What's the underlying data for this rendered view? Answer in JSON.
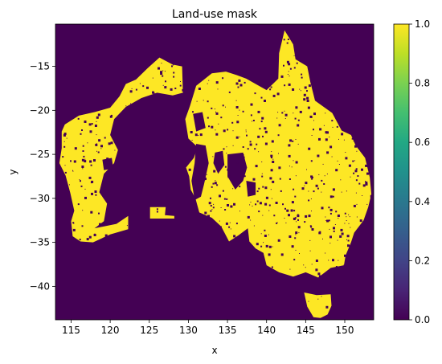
{
  "chart_data": {
    "type": "heatmap",
    "title": "Land-use mask",
    "xlabel": "x",
    "ylabel": "y",
    "xlim": [
      113,
      153.7
    ],
    "ylim": [
      -43.8,
      -10.2
    ],
    "xticks": [
      115,
      120,
      125,
      130,
      135,
      140,
      145,
      150
    ],
    "yticks": [
      -15,
      -20,
      -25,
      -30,
      -35,
      -40
    ],
    "xtick_labels": [
      "115",
      "120",
      "125",
      "130",
      "135",
      "140",
      "145",
      "150"
    ],
    "ytick_labels": [
      "−15",
      "−20",
      "−25",
      "−30",
      "−35",
      "−40"
    ],
    "grid": false,
    "colormap": "viridis",
    "clim": [
      0.0,
      1.0
    ],
    "colorbar_ticks": [
      0.0,
      0.2,
      0.4,
      0.6,
      0.8,
      1.0
    ],
    "colorbar_tick_labels": [
      "0.0",
      "0.2",
      "0.4",
      "0.6",
      "0.8",
      "1.0"
    ],
    "background_value": 0.0,
    "mask_value": 1.0,
    "background_color": "#440154",
    "mask_color": "#fde725",
    "mask_polygons": [
      {
        "name": "west-region",
        "points": [
          [
            114.2,
            -21.6
          ],
          [
            116.0,
            -20.6
          ],
          [
            118.0,
            -20.2
          ],
          [
            120.0,
            -19.7
          ],
          [
            121.2,
            -18.4
          ],
          [
            122.0,
            -17.0
          ],
          [
            123.3,
            -16.5
          ],
          [
            124.8,
            -15.2
          ],
          [
            126.3,
            -14.0
          ],
          [
            128.0,
            -14.8
          ],
          [
            129.2,
            -15.0
          ],
          [
            129.3,
            -18.0
          ],
          [
            128.0,
            -18.3
          ],
          [
            126.0,
            -18.0
          ],
          [
            124.0,
            -18.6
          ],
          [
            122.0,
            -19.6
          ],
          [
            120.5,
            -21.0
          ],
          [
            120.0,
            -22.8
          ],
          [
            121.0,
            -24.5
          ],
          [
            120.5,
            -26.0
          ],
          [
            119.2,
            -27.2
          ],
          [
            118.6,
            -29.3
          ],
          [
            119.6,
            -30.6
          ],
          [
            119.2,
            -32.6
          ],
          [
            118.0,
            -33.4
          ],
          [
            120.8,
            -32.9
          ],
          [
            122.3,
            -32.0
          ],
          [
            122.3,
            -33.5
          ],
          [
            120.0,
            -34.1
          ],
          [
            117.8,
            -35.0
          ],
          [
            116.2,
            -34.9
          ],
          [
            115.2,
            -34.3
          ],
          [
            115.0,
            -32.6
          ],
          [
            115.4,
            -31.4
          ],
          [
            114.9,
            -29.4
          ],
          [
            114.3,
            -27.4
          ],
          [
            113.5,
            -26.0
          ],
          [
            113.8,
            -24.3
          ],
          [
            113.8,
            -22.4
          ]
        ]
      },
      {
        "name": "east-region",
        "points": [
          [
            131.0,
            -17.2
          ],
          [
            133.0,
            -15.8
          ],
          [
            134.8,
            -15.6
          ],
          [
            136.2,
            -16.0
          ],
          [
            137.4,
            -16.4
          ],
          [
            138.6,
            -17.0
          ],
          [
            140.0,
            -17.7
          ],
          [
            141.5,
            -16.4
          ],
          [
            141.6,
            -13.5
          ],
          [
            142.3,
            -10.9
          ],
          [
            143.4,
            -12.5
          ],
          [
            143.7,
            -14.2
          ],
          [
            145.2,
            -15.0
          ],
          [
            145.6,
            -16.8
          ],
          [
            146.2,
            -18.9
          ],
          [
            148.4,
            -20.3
          ],
          [
            149.6,
            -22.3
          ],
          [
            150.8,
            -22.8
          ],
          [
            151.4,
            -24.0
          ],
          [
            152.6,
            -25.4
          ],
          [
            153.2,
            -27.6
          ],
          [
            153.4,
            -29.5
          ],
          [
            153.0,
            -31.0
          ],
          [
            152.4,
            -32.5
          ],
          [
            151.2,
            -33.9
          ],
          [
            150.8,
            -35.0
          ],
          [
            150.1,
            -36.5
          ],
          [
            149.9,
            -37.6
          ],
          [
            148.2,
            -37.9
          ],
          [
            146.6,
            -39.0
          ],
          [
            145.0,
            -38.4
          ],
          [
            143.4,
            -38.9
          ],
          [
            141.6,
            -38.4
          ],
          [
            140.0,
            -37.6
          ],
          [
            139.6,
            -36.2
          ],
          [
            138.6,
            -35.7
          ],
          [
            137.8,
            -34.9
          ],
          [
            137.6,
            -33.4
          ],
          [
            136.4,
            -34.2
          ],
          [
            135.2,
            -34.9
          ],
          [
            134.2,
            -33.2
          ],
          [
            133.0,
            -32.2
          ],
          [
            131.4,
            -31.6
          ],
          [
            130.9,
            -30.0
          ],
          [
            130.3,
            -29.0
          ],
          [
            130.1,
            -27.5
          ],
          [
            129.7,
            -26.5
          ],
          [
            130.7,
            -25.4
          ],
          [
            131.2,
            -24.2
          ],
          [
            130.0,
            -23.2
          ],
          [
            129.6,
            -21.0
          ],
          [
            130.2,
            -19.5
          ]
        ]
      },
      {
        "name": "tasmania",
        "points": [
          [
            144.8,
            -40.7
          ],
          [
            146.4,
            -41.0
          ],
          [
            148.2,
            -40.9
          ],
          [
            148.3,
            -42.2
          ],
          [
            147.8,
            -43.2
          ],
          [
            146.9,
            -43.6
          ],
          [
            146.0,
            -43.5
          ],
          [
            145.2,
            -42.3
          ]
        ]
      },
      {
        "name": "south-strip",
        "points": [
          [
            125.1,
            -31.0
          ],
          [
            127.1,
            -31.0
          ],
          [
            127.0,
            -31.9
          ],
          [
            128.2,
            -32.0
          ],
          [
            128.2,
            -32.3
          ],
          [
            125.1,
            -32.3
          ]
        ]
      }
    ],
    "hole_polygons": [
      {
        "name": "interior-gap-a",
        "points": [
          [
            131.0,
            -23.8
          ],
          [
            132.2,
            -24.0
          ],
          [
            132.6,
            -26.0
          ],
          [
            132.0,
            -28.4
          ],
          [
            131.6,
            -29.8
          ],
          [
            130.8,
            -30.2
          ],
          [
            130.4,
            -28.0
          ],
          [
            130.8,
            -26.0
          ]
        ]
      },
      {
        "name": "interior-gap-b",
        "points": [
          [
            133.4,
            -24.8
          ],
          [
            134.4,
            -24.6
          ],
          [
            134.6,
            -26.2
          ],
          [
            133.8,
            -27.2
          ],
          [
            133.2,
            -26.0
          ]
        ]
      },
      {
        "name": "interior-gap-c",
        "points": [
          [
            135.0,
            -25.0
          ],
          [
            137.0,
            -24.8
          ],
          [
            137.5,
            -26.5
          ],
          [
            137.0,
            -28.0
          ],
          [
            136.0,
            -29.0
          ],
          [
            135.0,
            -27.5
          ]
        ]
      },
      {
        "name": "lake-eyre",
        "points": [
          [
            137.4,
            -28.0
          ],
          [
            138.6,
            -28.2
          ],
          [
            138.6,
            -29.6
          ],
          [
            137.6,
            -29.8
          ]
        ]
      },
      {
        "name": "interior-gap-d",
        "points": [
          [
            130.6,
            -20.4
          ],
          [
            131.8,
            -20.2
          ],
          [
            132.2,
            -22.0
          ],
          [
            131.0,
            -22.4
          ]
        ]
      },
      {
        "name": "interior-gap-e",
        "points": [
          [
            119.0,
            -25.6
          ],
          [
            120.2,
            -25.4
          ],
          [
            120.4,
            -26.6
          ],
          [
            119.2,
            -26.8
          ]
        ]
      }
    ]
  }
}
